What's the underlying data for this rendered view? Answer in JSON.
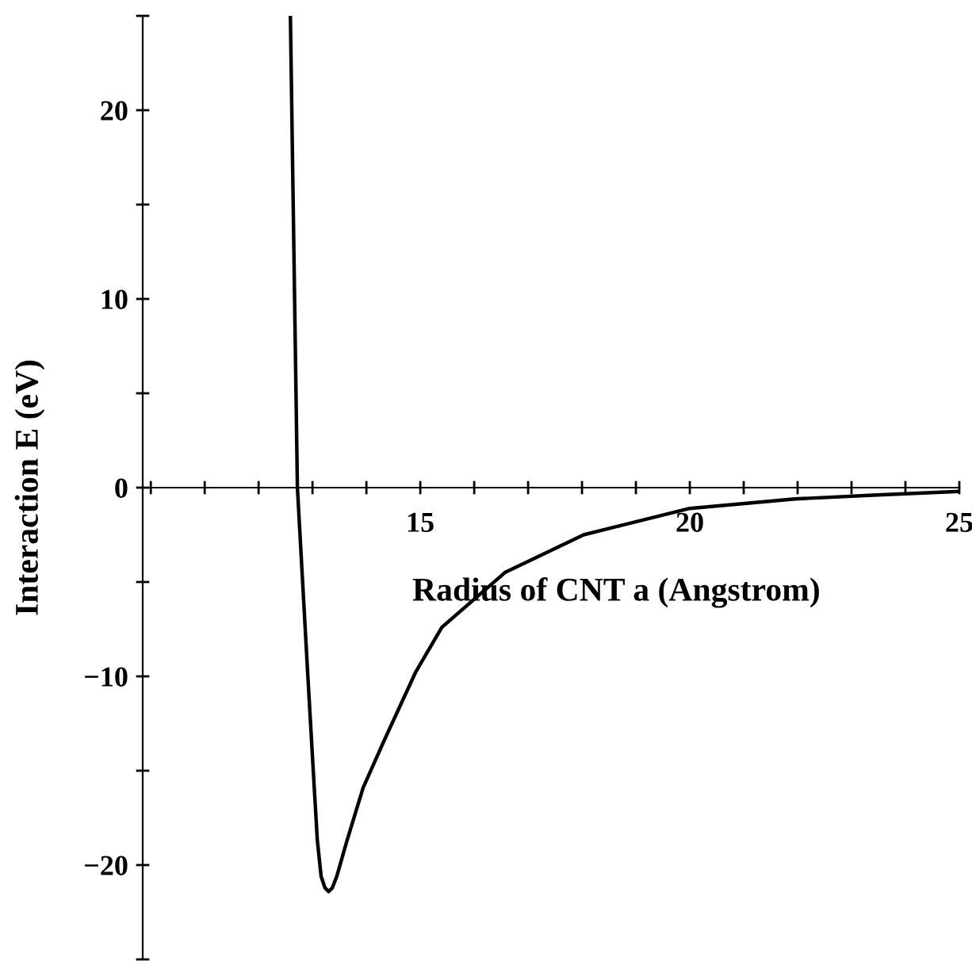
{
  "chart_data": {
    "type": "line",
    "xlabel": "Radius of CNT a (Angstrom)",
    "ylabel": "Interaction E (eV)",
    "xlim": [
      9.85,
      25
    ],
    "ylim": [
      -25,
      25
    ],
    "xticks": [
      {
        "value": 10,
        "label": null
      },
      {
        "value": 11,
        "label": null
      },
      {
        "value": 12,
        "label": null
      },
      {
        "value": 13,
        "label": null
      },
      {
        "value": 14,
        "label": null
      },
      15,
      {
        "value": 16,
        "label": null
      },
      {
        "value": 17,
        "label": null
      },
      {
        "value": 18,
        "label": null
      },
      {
        "value": 19,
        "label": null
      },
      20,
      {
        "value": 21,
        "label": null
      },
      {
        "value": 22,
        "label": null
      },
      {
        "value": 23,
        "label": null
      },
      {
        "value": 24,
        "label": null
      },
      25
    ],
    "yticks": [
      {
        "value": -25,
        "label": null
      },
      {
        "value": -20,
        "label": "−20"
      },
      {
        "value": -15,
        "label": null
      },
      {
        "value": -10,
        "label": "−10"
      },
      {
        "value": -5,
        "label": null
      },
      0,
      {
        "value": 5,
        "label": null
      },
      10,
      {
        "value": 15,
        "label": null
      },
      20,
      {
        "value": 25,
        "label": null
      }
    ],
    "grid": false,
    "marker": "none",
    "line_style": "solid",
    "series": [
      {
        "color": "#000000",
        "x": [
          12.59,
          12.72,
          12.91,
          13.01,
          13.09,
          13.16,
          13.23,
          13.3,
          13.37,
          13.45,
          13.64,
          13.94,
          14.33,
          14.91,
          15.4,
          16.57,
          18.03,
          20,
          21.95,
          23.4,
          25
        ],
        "values": [
          25,
          0,
          -9.8,
          -14.8,
          -18.7,
          -20.6,
          -21.2,
          -21.4,
          -21.2,
          -20.6,
          -18.7,
          -15.9,
          -13.4,
          -9.8,
          -7.4,
          -4.5,
          -2.5,
          -1.1,
          -0.6,
          -0.4,
          -0.2
        ]
      }
    ]
  }
}
